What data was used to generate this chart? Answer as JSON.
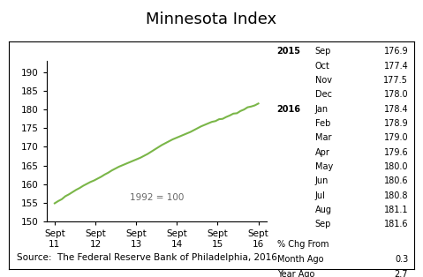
{
  "title": "Minnesota Index",
  "source": "Source:  The Federal Reserve Bank of Philadelphia, 2016",
  "annotation": "1992 = 100",
  "x_labels": [
    "Sept\n11",
    "Sept\n12",
    "Sept\n13",
    "Sept\n14",
    "Sept\n15",
    "Sept\n16"
  ],
  "x_values": [
    0,
    1,
    2,
    3,
    4,
    5
  ],
  "y_data": [
    154.9,
    155.5,
    156.0,
    156.8,
    157.3,
    157.9,
    158.5,
    159.0,
    159.6,
    160.1,
    160.6,
    161.0,
    161.5,
    162.0,
    162.6,
    163.1,
    163.7,
    164.2,
    164.7,
    165.1,
    165.5,
    165.9,
    166.3,
    166.7,
    167.1,
    167.6,
    168.1,
    168.7,
    169.3,
    169.9,
    170.5,
    171.0,
    171.5,
    172.0,
    172.4,
    172.8,
    173.2,
    173.6,
    174.0,
    174.5,
    175.0,
    175.5,
    175.9,
    176.3,
    176.7,
    176.9,
    177.4,
    177.5,
    178.0,
    178.4,
    178.9,
    179.0,
    179.6,
    180.0,
    180.6,
    180.8,
    181.1,
    181.6
  ],
  "ylim": [
    150,
    193
  ],
  "yticks": [
    150,
    155,
    160,
    165,
    170,
    175,
    180,
    185,
    190
  ],
  "line_color": "#7ab648",
  "table_year_col": [
    "2015",
    "",
    "",
    "",
    "2016",
    "",
    "",
    "",
    "",
    "",
    "",
    "",
    ""
  ],
  "table_month_col": [
    "Sep",
    "Oct",
    "Nov",
    "Dec",
    "Jan",
    "Feb",
    "Mar",
    "Apr",
    "May",
    "Jun",
    "Jul",
    "Aug",
    "Sep"
  ],
  "table_value_col": [
    "176.9",
    "177.4",
    "177.5",
    "178.0",
    "178.4",
    "178.9",
    "179.0",
    "179.6",
    "180.0",
    "180.6",
    "180.8",
    "181.1",
    "181.6"
  ],
  "pct_chg_label": "% Chg From",
  "month_ago_label": "Month Ago",
  "month_ago_val": "0.3",
  "year_ago_label": "Year Ago",
  "year_ago_val": "2.7",
  "title_fontsize": 13,
  "tick_fontsize": 7.5,
  "table_fontsize": 7.0,
  "source_fontsize": 7.5,
  "background_color": "#ffffff",
  "border_color": "#000000"
}
